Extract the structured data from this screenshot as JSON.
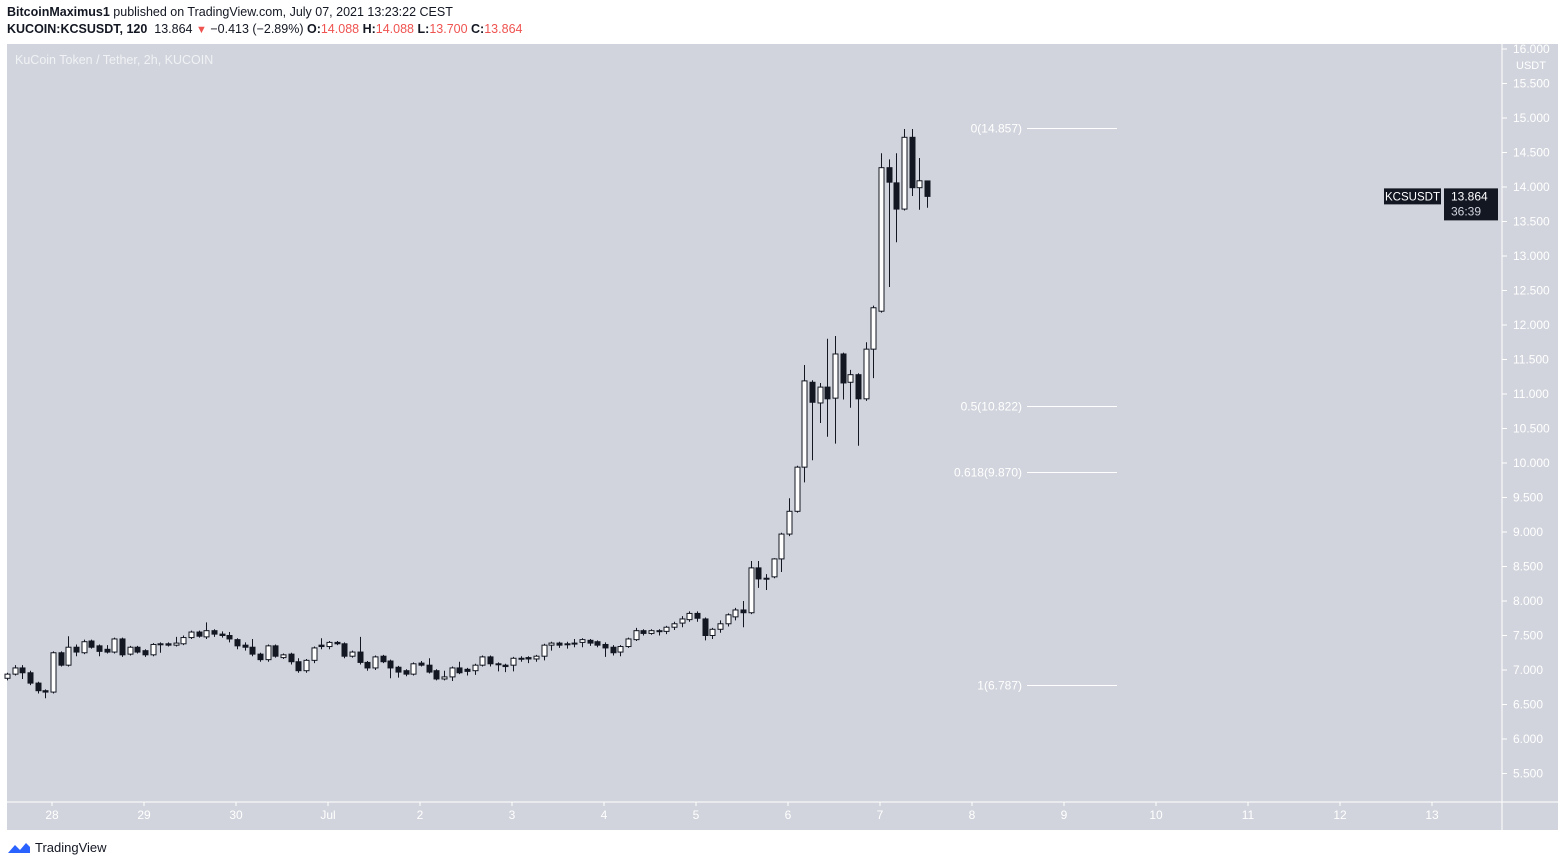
{
  "header": {
    "author": "BitcoinMaximus1",
    "published_text": "published on TradingView.com, July 07, 2021 13:23:22 CEST",
    "symbol": "KUCOIN:KCSUSDT, 120",
    "last": "13.864",
    "change": "−0.413 (−2.89%)",
    "o_label": "O:",
    "o": "14.088",
    "h_label": "H:",
    "h": "14.088",
    "l_label": "L:",
    "l": "13.700",
    "c_label": "C:",
    "c": "13.864"
  },
  "legend": "KuCoin Token / Tether, 2h, KUCOIN",
  "footer": {
    "brand": "TradingView"
  },
  "colors": {
    "background": "#d1d4dc",
    "up_fill": "#ffffff",
    "down_fill": "#131722",
    "change_red": "#ef5350",
    "axis_text": "#ffffff"
  },
  "chart_data": {
    "type": "candlestick",
    "interval": "2h",
    "price_axis": {
      "unit": "USDT",
      "ticks": [
        "16.000",
        "15.500",
        "15.000",
        "14.500",
        "14.000",
        "13.500",
        "13.000",
        "12.500",
        "12.000",
        "11.500",
        "11.000",
        "10.500",
        "10.000",
        "9.500",
        "9.000",
        "8.500",
        "8.000",
        "7.500",
        "7.000",
        "6.500",
        "6.000",
        "5.500"
      ]
    },
    "time_axis": {
      "ticks": [
        "28",
        "29",
        "30",
        "Jul",
        "2",
        "3",
        "4",
        "5",
        "6",
        "7",
        "8",
        "9",
        "10",
        "11",
        "12",
        "13"
      ]
    },
    "current_price": {
      "symbol": "KCSUSDT",
      "value": "13.864",
      "countdown": "36:39"
    },
    "fibonacci": [
      {
        "label": "0(14.857)",
        "price": 14.857
      },
      {
        "label": "0.5(10.822)",
        "price": 10.822
      },
      {
        "label": "0.618(9.870)",
        "price": 9.87
      },
      {
        "label": "1(6.787)",
        "price": 6.787
      }
    ],
    "ohlc": [
      [
        6.88,
        6.96,
        6.85,
        6.94
      ],
      [
        6.94,
        7.07,
        6.92,
        7.03
      ],
      [
        7.03,
        7.07,
        6.87,
        6.96
      ],
      [
        6.96,
        6.99,
        6.78,
        6.81
      ],
      [
        6.81,
        6.83,
        6.66,
        6.7
      ],
      [
        6.7,
        6.72,
        6.59,
        6.68
      ],
      [
        6.68,
        7.27,
        6.66,
        7.25
      ],
      [
        7.25,
        7.27,
        7.05,
        7.07
      ],
      [
        7.07,
        7.49,
        7.05,
        7.33
      ],
      [
        7.33,
        7.37,
        7.2,
        7.26
      ],
      [
        7.25,
        7.44,
        7.23,
        7.41
      ],
      [
        7.42,
        7.44,
        7.31,
        7.33
      ],
      [
        7.35,
        7.37,
        7.2,
        7.27
      ],
      [
        7.3,
        7.36,
        7.24,
        7.26
      ],
      [
        7.26,
        7.47,
        7.24,
        7.45
      ],
      [
        7.45,
        7.47,
        7.19,
        7.22
      ],
      [
        7.23,
        7.35,
        7.21,
        7.33
      ],
      [
        7.33,
        7.35,
        7.24,
        7.26
      ],
      [
        7.28,
        7.3,
        7.19,
        7.22
      ],
      [
        7.22,
        7.39,
        7.2,
        7.37
      ],
      [
        7.38,
        7.4,
        7.25,
        7.37
      ],
      [
        7.38,
        7.4,
        7.34,
        7.36
      ],
      [
        7.36,
        7.48,
        7.34,
        7.39
      ],
      [
        7.38,
        7.5,
        7.36,
        7.47
      ],
      [
        7.47,
        7.57,
        7.45,
        7.55
      ],
      [
        7.55,
        7.57,
        7.47,
        7.49
      ],
      [
        7.48,
        7.69,
        7.45,
        7.57
      ],
      [
        7.57,
        7.59,
        7.48,
        7.52
      ],
      [
        7.52,
        7.56,
        7.47,
        7.5
      ],
      [
        7.5,
        7.55,
        7.4,
        7.45
      ],
      [
        7.44,
        7.46,
        7.3,
        7.35
      ],
      [
        7.36,
        7.4,
        7.28,
        7.33
      ],
      [
        7.33,
        7.45,
        7.2,
        7.23
      ],
      [
        7.23,
        7.25,
        7.12,
        7.15
      ],
      [
        7.15,
        7.37,
        7.12,
        7.35
      ],
      [
        7.35,
        7.37,
        7.18,
        7.2
      ],
      [
        7.18,
        7.24,
        7.16,
        7.22
      ],
      [
        7.23,
        7.25,
        7.08,
        7.12
      ],
      [
        7.12,
        7.17,
        6.96,
        6.99
      ],
      [
        6.99,
        7.16,
        6.96,
        7.14
      ],
      [
        7.14,
        7.34,
        7.1,
        7.32
      ],
      [
        7.36,
        7.46,
        7.3,
        7.34
      ],
      [
        7.34,
        7.42,
        7.3,
        7.4
      ],
      [
        7.4,
        7.42,
        7.36,
        7.38
      ],
      [
        7.38,
        7.4,
        7.17,
        7.2
      ],
      [
        7.2,
        7.28,
        7.18,
        7.26
      ],
      [
        7.26,
        7.48,
        7.08,
        7.11
      ],
      [
        7.11,
        7.13,
        6.99,
        7.03
      ],
      [
        7.03,
        7.21,
        7.0,
        7.19
      ],
      [
        7.2,
        7.22,
        7.1,
        7.12
      ],
      [
        7.13,
        7.15,
        6.88,
        7.03
      ],
      [
        7.04,
        7.06,
        6.89,
        6.97
      ],
      [
        6.99,
        7.01,
        6.91,
        6.94
      ],
      [
        6.94,
        7.11,
        6.92,
        7.09
      ],
      [
        7.1,
        7.13,
        7.05,
        7.07
      ],
      [
        7.07,
        7.17,
        6.95,
        6.97
      ],
      [
        6.99,
        7.01,
        6.85,
        6.87
      ],
      [
        6.87,
        6.99,
        6.85,
        6.9
      ],
      [
        6.9,
        7.05,
        6.84,
        7.03
      ],
      [
        7.03,
        7.12,
        6.94,
        6.96
      ],
      [
        7.01,
        7.03,
        6.92,
        6.98
      ],
      [
        6.99,
        7.09,
        6.93,
        7.07
      ],
      [
        7.07,
        7.21,
        7.05,
        7.19
      ],
      [
        7.19,
        7.21,
        7.05,
        7.09
      ],
      [
        7.09,
        7.11,
        6.98,
        7.08
      ],
      [
        7.07,
        7.09,
        6.97,
        7.05
      ],
      [
        7.07,
        7.19,
        6.98,
        7.17
      ],
      [
        7.17,
        7.2,
        7.12,
        7.16
      ],
      [
        7.18,
        7.2,
        7.1,
        7.16
      ],
      [
        7.16,
        7.22,
        7.12,
        7.2
      ],
      [
        7.2,
        7.38,
        7.14,
        7.36
      ],
      [
        7.36,
        7.41,
        7.28,
        7.39
      ],
      [
        7.39,
        7.41,
        7.32,
        7.36
      ],
      [
        7.38,
        7.41,
        7.31,
        7.37
      ],
      [
        7.39,
        7.45,
        7.33,
        7.38
      ],
      [
        7.4,
        7.46,
        7.33,
        7.44
      ],
      [
        7.43,
        7.45,
        7.35,
        7.39
      ],
      [
        7.41,
        7.43,
        7.33,
        7.36
      ],
      [
        7.37,
        7.4,
        7.19,
        7.32
      ],
      [
        7.33,
        7.36,
        7.21,
        7.25
      ],
      [
        7.26,
        7.36,
        7.2,
        7.34
      ],
      [
        7.34,
        7.47,
        7.32,
        7.45
      ],
      [
        7.44,
        7.61,
        7.42,
        7.57
      ],
      [
        7.57,
        7.59,
        7.5,
        7.53
      ],
      [
        7.53,
        7.59,
        7.51,
        7.57
      ],
      [
        7.57,
        7.59,
        7.5,
        7.56
      ],
      [
        7.56,
        7.64,
        7.52,
        7.62
      ],
      [
        7.62,
        7.7,
        7.58,
        7.67
      ],
      [
        7.68,
        7.78,
        7.62,
        7.74
      ],
      [
        7.73,
        7.85,
        7.7,
        7.82
      ],
      [
        7.82,
        7.85,
        7.7,
        7.75
      ],
      [
        7.74,
        7.76,
        7.43,
        7.5
      ],
      [
        7.5,
        7.61,
        7.45,
        7.59
      ],
      [
        7.59,
        7.72,
        7.54,
        7.67
      ],
      [
        7.67,
        7.82,
        7.63,
        7.8
      ],
      [
        7.77,
        7.9,
        7.72,
        7.87
      ],
      [
        7.87,
        8.0,
        7.62,
        7.83
      ],
      [
        7.83,
        8.58,
        7.81,
        8.48
      ],
      [
        8.48,
        8.58,
        8.19,
        8.32
      ],
      [
        8.33,
        8.39,
        8.16,
        8.33
      ],
      [
        8.35,
        8.62,
        8.33,
        8.61
      ],
      [
        8.61,
        8.99,
        8.42,
        8.97
      ],
      [
        8.97,
        9.49,
        8.94,
        9.3
      ],
      [
        9.3,
        9.96,
        9.28,
        9.94
      ],
      [
        9.94,
        11.42,
        9.72,
        11.19
      ],
      [
        11.17,
        11.2,
        10.04,
        10.88
      ],
      [
        10.87,
        11.16,
        10.58,
        11.1
      ],
      [
        11.1,
        11.8,
        10.38,
        10.93
      ],
      [
        10.94,
        11.84,
        10.28,
        11.58
      ],
      [
        11.58,
        11.6,
        10.92,
        11.16
      ],
      [
        11.17,
        11.35,
        10.8,
        11.28
      ],
      [
        11.28,
        11.3,
        10.25,
        10.93
      ],
      [
        10.93,
        11.75,
        10.9,
        11.65
      ],
      [
        11.65,
        12.28,
        11.23,
        12.25
      ],
      [
        12.2,
        14.49,
        12.18,
        14.28
      ],
      [
        14.28,
        14.4,
        12.55,
        14.07
      ],
      [
        14.06,
        14.49,
        13.2,
        13.68
      ],
      [
        13.68,
        14.84,
        13.66,
        14.72
      ],
      [
        14.72,
        14.84,
        13.87,
        13.99
      ],
      [
        13.99,
        14.42,
        13.67,
        14.09
      ],
      [
        14.088,
        14.088,
        13.7,
        13.864
      ]
    ]
  }
}
